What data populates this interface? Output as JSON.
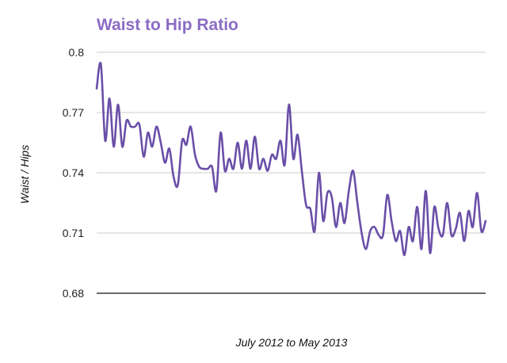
{
  "chart_data": {
    "type": "line",
    "title": "Waist to Hip Ratio",
    "xlabel": "July 2012 to May 2013",
    "ylabel": "Waist / Hips",
    "ylim": [
      0.68,
      0.8
    ],
    "yticks": [
      0.8,
      0.77,
      0.74,
      0.71,
      0.68
    ],
    "ytick_labels": [
      "0.8",
      "0.77",
      "0.74",
      "0.71",
      "0.68"
    ],
    "grid": true,
    "colors": {
      "title": "#8b6cc4",
      "line": "#6a4fa8",
      "grid": "#cccccc",
      "baseline": "#111111"
    },
    "series": [
      {
        "values": [
          0.782,
          0.794,
          0.756,
          0.777,
          0.753,
          0.774,
          0.753,
          0.766,
          0.763,
          0.763,
          0.764,
          0.748,
          0.76,
          0.753,
          0.763,
          0.755,
          0.745,
          0.752,
          0.738,
          0.734,
          0.756,
          0.754,
          0.763,
          0.749,
          0.743,
          0.742,
          0.742,
          0.743,
          0.731,
          0.76,
          0.741,
          0.747,
          0.742,
          0.755,
          0.742,
          0.756,
          0.742,
          0.758,
          0.742,
          0.747,
          0.741,
          0.749,
          0.747,
          0.756,
          0.744,
          0.774,
          0.747,
          0.759,
          0.741,
          0.724,
          0.722,
          0.711,
          0.74,
          0.716,
          0.73,
          0.728,
          0.713,
          0.725,
          0.715,
          0.731,
          0.741,
          0.725,
          0.71,
          0.702,
          0.711,
          0.713,
          0.709,
          0.709,
          0.729,
          0.716,
          0.706,
          0.711,
          0.699,
          0.713,
          0.706,
          0.723,
          0.702,
          0.731,
          0.7,
          0.723,
          0.712,
          0.709,
          0.725,
          0.709,
          0.712,
          0.72,
          0.706,
          0.721,
          0.713,
          0.73,
          0.711,
          0.716
        ]
      }
    ]
  }
}
